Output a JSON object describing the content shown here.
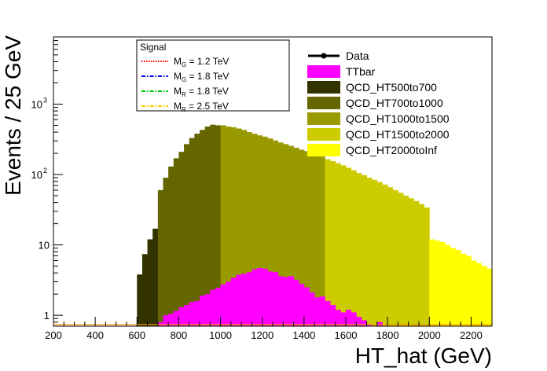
{
  "chart_data": {
    "type": "bar",
    "stacked": true,
    "xlabel": "HT_hat (GeV)",
    "ylabel": "Events / 25 GeV",
    "xlim": [
      200,
      2300
    ],
    "ylim": [
      0.7,
      9000
    ],
    "yscale": "log",
    "bin_width": 25,
    "x_ticks": [
      "200",
      "400",
      "600",
      "800",
      "1000",
      "1200",
      "1400",
      "1600",
      "1800",
      "2000",
      "2200"
    ],
    "y_ticks": [
      {
        "value": 1,
        "label": "1"
      },
      {
        "value": 10,
        "label": "10"
      },
      {
        "value": 100,
        "label": "10",
        "exp": "2"
      },
      {
        "value": 1000,
        "label": "10",
        "exp": "3"
      }
    ],
    "background_series": [
      {
        "name": "QCD_HT500to700",
        "color": "#333300",
        "x_start": 600,
        "values": [
          3.8,
          7.4,
          12,
          17
        ]
      },
      {
        "name": "QCD_HT700to1000",
        "color": "#666600",
        "x_start": 700,
        "values": [
          60,
          90,
          130,
          170,
          210,
          270,
          330,
          380,
          430,
          480,
          510,
          500
        ]
      },
      {
        "name": "QCD_HT1000to1500",
        "color": "#999900",
        "x_start": 1000,
        "values": [
          500,
          480,
          470,
          450,
          430,
          400,
          380,
          360,
          345,
          325,
          305,
          285,
          270,
          255,
          240,
          225,
          215,
          200,
          190,
          180
        ]
      },
      {
        "name": "QCD_HT1500to2000",
        "color": "#cccc00",
        "x_start": 1500,
        "values": [
          165,
          155,
          145,
          135,
          125,
          115,
          105,
          98,
          90,
          84,
          78,
          72,
          66,
          60,
          55,
          50,
          46,
          42,
          38,
          34
        ]
      },
      {
        "name": "QCD_HT2000toInf",
        "color": "#ffff00",
        "x_start": 2000,
        "values": [
          12,
          11.5,
          11,
          10,
          9,
          8.5,
          7.5,
          7,
          6,
          5.5,
          5,
          4.6
        ]
      }
    ],
    "ttbar": {
      "name": "TTbar",
      "color": "#ff00ff",
      "x_start": 700,
      "values": [
        0.8,
        1.0,
        1.05,
        1.15,
        1.3,
        1.4,
        1.55,
        1.6,
        1.9,
        2.0,
        2.3,
        2.45,
        2.75,
        3.0,
        3.4,
        3.75,
        3.9,
        4.1,
        4.5,
        4.7,
        4.6,
        4.2,
        4.1,
        3.6,
        3.5,
        3.6,
        3.2,
        2.8,
        2.5,
        2.1,
        1.8,
        1.85,
        1.6,
        1.4,
        1.2,
        1.1,
        1.2,
        1.1,
        0.95,
        0.85,
        0.75,
        0.7,
        0.8
      ]
    },
    "data_series": {
      "name": "Data",
      "color": "#000000"
    },
    "legend_main": {
      "placement": "top-right",
      "entries": [
        {
          "name": "Data",
          "color": "#000000",
          "kind": "marker"
        },
        {
          "name": "TTbar",
          "color": "#ff00ff",
          "kind": "fill"
        },
        {
          "name": "QCD_HT500to700",
          "color": "#333300",
          "kind": "fill"
        },
        {
          "name": "QCD_HT700to1000",
          "color": "#666600",
          "kind": "fill"
        },
        {
          "name": "QCD_HT1000to1500",
          "color": "#999900",
          "kind": "fill"
        },
        {
          "name": "QCD_HT1500to2000",
          "color": "#cccc00",
          "kind": "fill"
        },
        {
          "name": "QCD_HT2000toInf",
          "color": "#ffff00",
          "kind": "fill"
        }
      ]
    },
    "legend_signal": {
      "title": "Signal",
      "placement": "top-center",
      "entries": [
        {
          "prefix": "M",
          "sub": "G",
          "suffix": " = 1.2 TeV",
          "color": "#ff0000",
          "dash": "dotted"
        },
        {
          "prefix": "M",
          "sub": "G",
          "suffix": " = 1.8 TeV",
          "color": "#0000ff",
          "dash": "dashdot"
        },
        {
          "prefix": "M",
          "sub": "R",
          "suffix": " = 1.8 TeV",
          "color": "#00cc00",
          "dash": "dashdot"
        },
        {
          "prefix": "M",
          "sub": "R",
          "suffix": " = 2.5 TeV",
          "color": "#ffcc00",
          "dash": "dashdot"
        }
      ]
    }
  }
}
